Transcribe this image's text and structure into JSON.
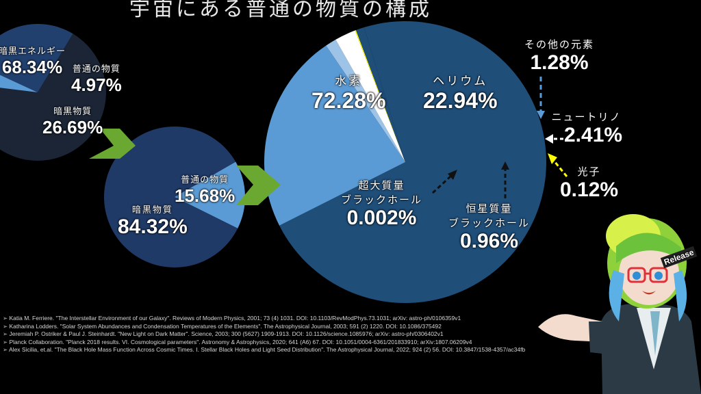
{
  "title": "宇宙にある普通の物質の構成",
  "chart_data": [
    {
      "type": "pie",
      "slices": [
        {
          "name": "暗黒エネルギー",
          "value": 68.34,
          "label": "68.34%",
          "color": "#1b2535"
        },
        {
          "name": "普通の物質",
          "value": 4.97,
          "label": "4.97%",
          "color": "#5b9bd5"
        },
        {
          "name": "暗黒物質",
          "value": 26.69,
          "label": "26.69%",
          "color": "#22406e"
        }
      ]
    },
    {
      "type": "pie",
      "slices": [
        {
          "name": "普通の物質",
          "value": 15.68,
          "label": "15.68%",
          "color": "#5b9bd5"
        },
        {
          "name": "暗黒物質",
          "value": 84.32,
          "label": "84.32%",
          "color": "#203a67"
        }
      ]
    },
    {
      "type": "pie",
      "slices": [
        {
          "name": "水素",
          "value": 72.28,
          "label": "72.28%",
          "color": "#1f4e79"
        },
        {
          "name": "ヘリウム",
          "value": 22.94,
          "label": "22.94%",
          "color": "#5b9bd5"
        },
        {
          "name": "その他の元素",
          "value": 1.28,
          "label": "1.28%",
          "color": "#9dc3e6"
        },
        {
          "name": "ニュートリノ",
          "value": 2.41,
          "label": "2.41%",
          "color": "#ffffff"
        },
        {
          "name": "光子",
          "value": 0.12,
          "label": "0.12%",
          "color": "#ffff00"
        },
        {
          "name": "超大質量ブラックホール",
          "value": 0.002,
          "label": "0.002%",
          "color": "#1f4e79"
        },
        {
          "name": "恒星質量ブラックホール",
          "value": 0.96,
          "label": "0.96%",
          "color": "#1f4e79"
        }
      ]
    }
  ],
  "labels": {
    "dark_energy": {
      "name": "暗黒エネルギー",
      "pct": "68.34%"
    },
    "ordinary1": {
      "name": "普通の物質",
      "pct": "4.97%"
    },
    "dark_matter1": {
      "name": "暗黒物質",
      "pct": "26.69%"
    },
    "ordinary2": {
      "name": "普通の物質",
      "pct": "15.68%"
    },
    "dark_matter2": {
      "name": "暗黒物質",
      "pct": "84.32%"
    },
    "hydrogen": {
      "name": "水素",
      "pct": "72.28%"
    },
    "helium": {
      "name": "ヘリウム",
      "pct": "22.94%"
    },
    "other": {
      "name": "その他の元素",
      "pct": "1.28%"
    },
    "neutrino": {
      "name": "ニュートリノ",
      "pct": "2.41%"
    },
    "photon": {
      "name": "光子",
      "pct": "0.12%"
    },
    "smbh": {
      "name1": "超大質量",
      "name2": "ブラックホール",
      "pct": "0.002%"
    },
    "sbh": {
      "name1": "恒星質量",
      "name2": "ブラックホール",
      "pct": "0.96%"
    }
  },
  "references": [
    "Katia M. Ferriere. \"The Interstellar Environment of our Galaxy\". Reviews of Modern Physics, 2001; 73 (4) 1031. DOI: 10.1103/RevModPhys.73.1031; arXiv: astro-ph/0106359v1",
    "Katharina Lodders. \"Solar System Abundances and Condensation Temperatures of the Elements\". The Astrophysical Journal, 2003; 591 (2) 1220. DOI: 10.1086/375492",
    "Jeremiah P. Ostriker & Paul J. Steinhardt. \"New Light on Dark Matter\". Science, 2003; 300 (5627) 1909-1913. DOI: 10.1126/science.1085976; arXiv: astro-ph/0306402v1",
    "Planck Collaboration. \"Planck 2018 results. VI. Cosmological parameters\". Astronomy & Astrophysics, 2020; 641 (A6) 67. DOI: 10.1051/0004-6361/201833910; arXiv:1807.06209v4",
    "Alex Sicilia, et.al. \"The Black Hole Mass Function Across Cosmic Times. I. Stellar Black Holes and Light Seed Distribution\". The Astrophysical Journal, 2022; 924 (2) 56. DOI: 10.3847/1538-4357/ac34fb"
  ],
  "character": {
    "badge_text": "Release"
  },
  "colors": {
    "arrow": "#6aa832",
    "dashed_pointer": "#ffff00"
  }
}
